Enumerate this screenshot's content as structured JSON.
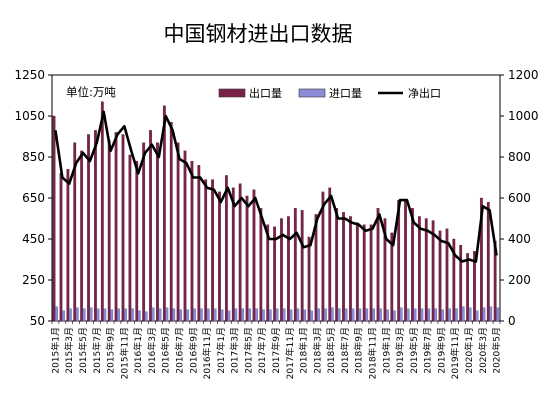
{
  "colors": {
    "export": "#7a2348",
    "import": "#8b8bd6",
    "net": "#000000"
  },
  "chart_data": {
    "type": "bar",
    "title": "中国钢材进出口数据",
    "unit_label": "单位:万吨",
    "legend": [
      "出口量",
      "进口量",
      "净出口"
    ],
    "y_left_ticks": [
      "1250",
      "1050",
      "850",
      "650",
      "450",
      "250",
      "50"
    ],
    "y_right_ticks": [
      "1200",
      "1000",
      "800",
      "600",
      "400",
      "200",
      "0"
    ],
    "ylim_left": [
      50,
      1250
    ],
    "ylim_right": [
      0,
      1200
    ],
    "x_tick_labels": [
      "2015年1月",
      "2015年3月",
      "2015年5月",
      "2015年7月",
      "2015年9月",
      "2015年11月",
      "2016年1月",
      "2016年3月",
      "2016年5月",
      "2016年7月",
      "2016年9月",
      "2016年11月",
      "2017年1月",
      "2017年3月",
      "2017年5月",
      "2017年7月",
      "2017年9月",
      "2017年11月",
      "2018年1月",
      "2018年3月",
      "2018年5月",
      "2018年7月",
      "2018年9月",
      "2018年11月",
      "2019年1月",
      "2019年3月",
      "2019年5月",
      "2019年7月",
      "2019年9月",
      "2019年11月",
      "2020年1月",
      "2020年3月",
      "2020年5月"
    ],
    "x_tick_indices": [
      0,
      2,
      4,
      6,
      8,
      10,
      12,
      14,
      16,
      18,
      20,
      22,
      24,
      26,
      28,
      30,
      32,
      34,
      36,
      38,
      40,
      42,
      44,
      46,
      48,
      50,
      52,
      54,
      56,
      58,
      60,
      62,
      64
    ],
    "categories": [
      "2015-01",
      "2015-02",
      "2015-03",
      "2015-04",
      "2015-05",
      "2015-06",
      "2015-07",
      "2015-08",
      "2015-09",
      "2015-10",
      "2015-11",
      "2015-12",
      "2016-01",
      "2016-02",
      "2016-03",
      "2016-04",
      "2016-05",
      "2016-06",
      "2016-07",
      "2016-08",
      "2016-09",
      "2016-10",
      "2016-11",
      "2016-12",
      "2017-01",
      "2017-02",
      "2017-03",
      "2017-04",
      "2017-05",
      "2017-06",
      "2017-07",
      "2017-08",
      "2017-09",
      "2017-10",
      "2017-11",
      "2017-12",
      "2018-01",
      "2018-02",
      "2018-03",
      "2018-04",
      "2018-05",
      "2018-06",
      "2018-07",
      "2018-08",
      "2018-09",
      "2018-10",
      "2018-11",
      "2018-12",
      "2019-01",
      "2019-02",
      "2019-03",
      "2019-04",
      "2019-05",
      "2019-06",
      "2019-07",
      "2019-08",
      "2019-09",
      "2019-10",
      "2019-11",
      "2019-12",
      "2020-01",
      "2020-02",
      "2020-03",
      "2020-04",
      "2020-05"
    ],
    "series": [
      {
        "name": "出口量",
        "axis": "left",
        "kind": "bar",
        "values": [
          1050,
          770,
          790,
          920,
          880,
          960,
          980,
          1120,
          930,
          970,
          960,
          860,
          830,
          920,
          980,
          920,
          1100,
          1020,
          920,
          880,
          830,
          810,
          740,
          740,
          680,
          760,
          700,
          720,
          660,
          690,
          600,
          520,
          510,
          550,
          560,
          600,
          590,
          460,
          570,
          680,
          700,
          600,
          580,
          560,
          530,
          520,
          520,
          600,
          550,
          480,
          640,
          640,
          600,
          560,
          550,
          540,
          490,
          500,
          450,
          420,
          380,
          390,
          650,
          630,
          440
        ]
      },
      {
        "name": "进口量",
        "axis": "left",
        "kind": "bar",
        "values": [
          120,
          100,
          110,
          115,
          110,
          115,
          110,
          110,
          105,
          110,
          110,
          110,
          100,
          95,
          115,
          110,
          115,
          110,
          105,
          105,
          110,
          110,
          110,
          110,
          105,
          100,
          110,
          110,
          110,
          110,
          105,
          105,
          110,
          110,
          105,
          110,
          105,
          100,
          110,
          110,
          115,
          110,
          110,
          110,
          110,
          110,
          110,
          110,
          105,
          100,
          115,
          110,
          110,
          110,
          110,
          110,
          105,
          110,
          110,
          120,
          115,
          100,
          115,
          120,
          115
        ]
      },
      {
        "name": "净出口",
        "axis": "right",
        "kind": "line",
        "values": [
          930,
          700,
          670,
          770,
          820,
          780,
          870,
          1020,
          830,
          910,
          950,
          830,
          720,
          820,
          860,
          800,
          1000,
          930,
          790,
          770,
          700,
          700,
          650,
          640,
          580,
          650,
          560,
          600,
          560,
          600,
          500,
          400,
          400,
          420,
          400,
          430,
          360,
          370,
          500,
          570,
          610,
          500,
          500,
          480,
          470,
          440,
          450,
          520,
          400,
          370,
          590,
          590,
          480,
          450,
          440,
          420,
          390,
          380,
          320,
          290,
          300,
          290,
          560,
          540,
          320
        ]
      }
    ],
    "grid": false,
    "legend_placement": "top"
  }
}
